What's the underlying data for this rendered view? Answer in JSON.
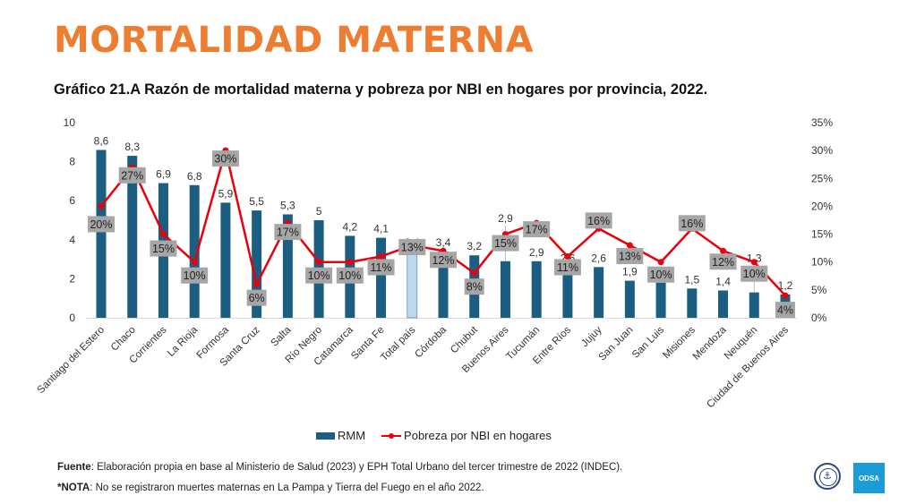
{
  "header": {
    "main_title": "MORTALIDAD MATERNA",
    "chart_title": "Gráfico 21.A Razón de mortalidad materna y pobreza por NBI en hogares por provincia, 2022."
  },
  "colors": {
    "title_orange": "#ED7D31",
    "bar": "#1B5E82",
    "bar_highlight": "#BDD7EE",
    "line": "#E8000B",
    "label_box": "#A6A6A6"
  },
  "chart_data": {
    "type": "bar",
    "title": "Gráfico 21.A Razón de mortalidad materna y pobreza por NBI en hogares por provincia, 2022.",
    "xlabel": "",
    "ylabel": "",
    "ylim": [
      0,
      10
    ],
    "y2lim": [
      0,
      35
    ],
    "yticks": [
      "0",
      "2",
      "4",
      "6",
      "8",
      "10"
    ],
    "y2ticks": [
      "0%",
      "5%",
      "10%",
      "15%",
      "20%",
      "25%",
      "30%",
      "35%"
    ],
    "grid": false,
    "legend_position": "bottom",
    "categories": [
      "Santiago del Estero",
      "Chaco",
      "Corrientes",
      "La Rioja",
      "Formosa",
      "Santa Cruz",
      "Salta",
      "Río Negro",
      "Catamarca",
      "Santa Fe",
      "Total país",
      "Córdoba",
      "Chubut",
      "Buenos Aires",
      "Tucumán",
      "Entre Ríos",
      "Jujuy",
      "San Juan",
      "San Luis",
      "Misiones",
      "Mendoza",
      "Neuquén",
      "Ciudad de Buenos Aires"
    ],
    "highlight_category": "Total país",
    "series": [
      {
        "name": "RMM",
        "type": "bar",
        "axis": "left",
        "values": [
          8.6,
          8.3,
          6.9,
          6.8,
          5.9,
          5.5,
          5.3,
          5.0,
          4.2,
          4.1,
          3.4,
          3.4,
          3.2,
          2.9,
          2.9,
          2.6,
          2.6,
          1.9,
          1.8,
          1.5,
          1.4,
          1.3,
          1.2
        ],
        "labels": [
          "8,6",
          "8,3",
          "6,9",
          "6,8",
          "5,9",
          "5,5",
          "5,3",
          "5",
          "4,2",
          "4,1",
          "3,4",
          "3,4",
          "3,2",
          "2,9",
          "2,9",
          "2,6",
          "2,6",
          "1,9",
          "",
          "1,5",
          "1,4",
          "1,3",
          "1,2"
        ]
      },
      {
        "name": "Pobreza por NBI en hogares",
        "type": "line",
        "axis": "right",
        "values": [
          20,
          27,
          15,
          10,
          30,
          6,
          17,
          10,
          10,
          11,
          13,
          12,
          8,
          15,
          17,
          11,
          16,
          13,
          10,
          16,
          12,
          10,
          4
        ],
        "labels": [
          "20%",
          "27%",
          "15%",
          "10%",
          "30%",
          "6%",
          "17%",
          "10%",
          "10%",
          "11%",
          "13%",
          "12%",
          "8%",
          "15%",
          "17%",
          "11%",
          "16%",
          "13%",
          "10%",
          "16%",
          "12%",
          "10%",
          "4%"
        ]
      }
    ]
  },
  "legend": {
    "bar_label": "RMM",
    "line_label": "Pobreza por NBI en hogares"
  },
  "footer": {
    "source_label": "Fuente",
    "source_text": ": Elaboración propia en base al Ministerio de Salud (2023) y EPH Total Urbano del tercer trimestre de 2022 (INDEC).",
    "note_label": "*NOTA",
    "note_text": ": No se registraron muertes maternas en La Pampa y Tierra del Fuego en el año 2022."
  },
  "logos": {
    "odsa_text": "ODSA"
  }
}
